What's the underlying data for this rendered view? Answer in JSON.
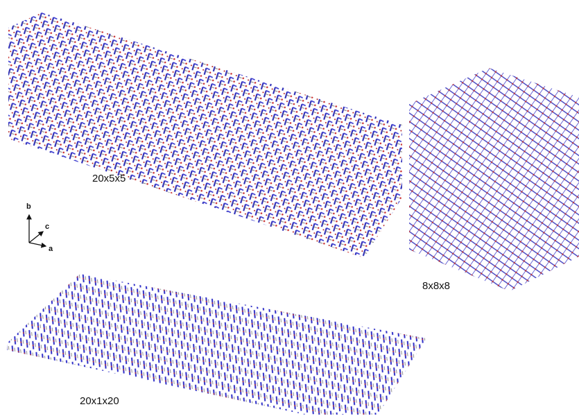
{
  "panels": [
    {
      "label": "20x5x5"
    },
    {
      "label": "8x8x8"
    },
    {
      "label": "20x1x20"
    }
  ],
  "axes": [
    "b",
    "c",
    "a"
  ]
}
